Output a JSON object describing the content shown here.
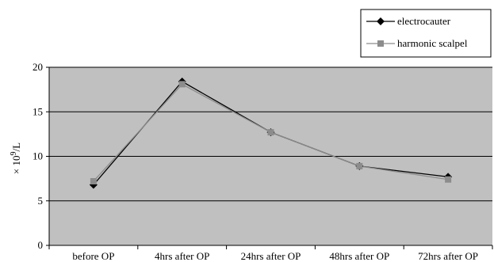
{
  "chart_data": {
    "type": "line",
    "title": "",
    "xlabel": "",
    "ylabel": "× 10⁹/L",
    "categories": [
      "before OP",
      "4hrs after OP",
      "24hrs after OP",
      "48hrs after OP",
      "72hrs after OP"
    ],
    "ylim": [
      0,
      20
    ],
    "yticks": [
      0,
      5,
      10,
      15,
      20
    ],
    "grid": true,
    "legend_position": "top-right",
    "series": [
      {
        "name": "electrocauter",
        "values": [
          6.8,
          18.4,
          12.7,
          8.9,
          7.7
        ],
        "marker": "diamond",
        "color": "#000000"
      },
      {
        "name": "harmonic scalpel",
        "values": [
          7.2,
          18.1,
          12.7,
          8.9,
          7.4
        ],
        "marker": "square",
        "color": "#8c8c8c"
      }
    ],
    "colors": {
      "plot_background": "#c0c0c0",
      "gridline": "#000000"
    }
  }
}
